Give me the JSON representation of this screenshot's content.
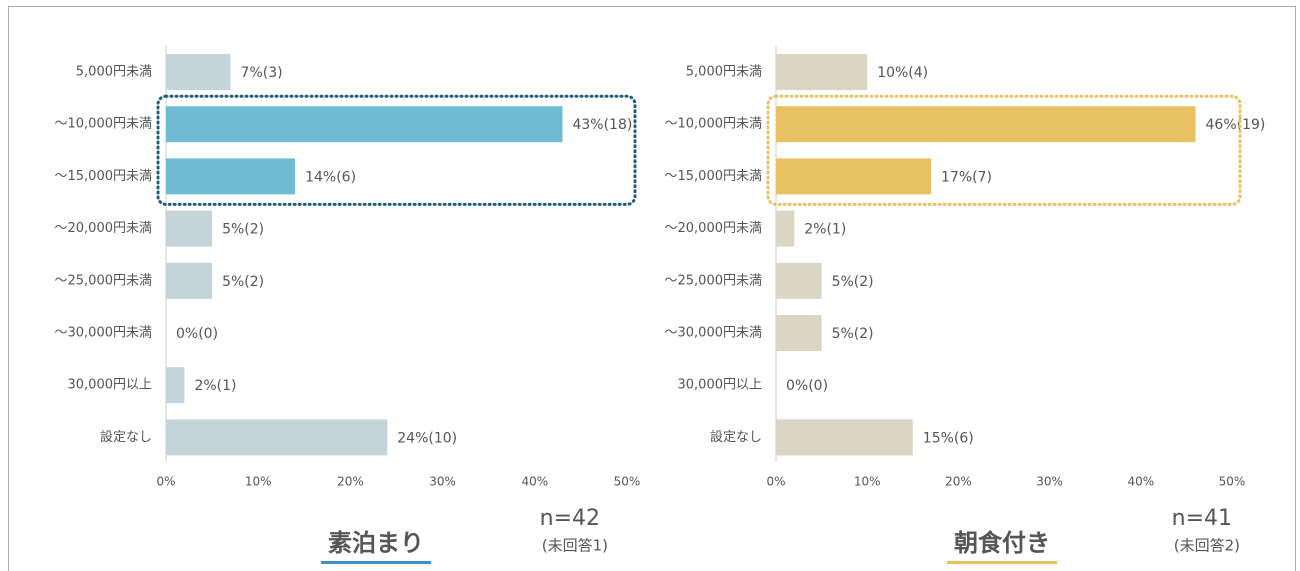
{
  "chart_data": [
    {
      "type": "bar",
      "orientation": "horizontal",
      "title": "素泊まり",
      "n_label": "n=42",
      "note": "(未回答1)",
      "categories": [
        "5,000円未満",
        "～10,000円未満",
        "～15,000円未満",
        "～20,000円未満",
        "～25,000円未満",
        "～30,000円未満",
        "30,000円以上",
        "設定なし"
      ],
      "values": [
        7,
        43,
        14,
        5,
        5,
        0,
        2,
        24
      ],
      "value_labels": [
        "7%(3)",
        "43%(18)",
        "14%(6)",
        "5%(2)",
        "5%(2)",
        "0%(0)",
        "2%(1)",
        "24%(10)"
      ],
      "colors": [
        "#c5d3da",
        "#6fbbd3",
        "#6fbbd3",
        "#c5d3da",
        "#c5d3da",
        "#c5d3da",
        "#c5d3da",
        "#c5d3da"
      ],
      "box_color": "#1f5f7a",
      "accent_color": "#3f8fc4",
      "xlim": [
        0,
        50
      ],
      "xticks": [
        {
          "value": 0,
          "label": "0%"
        },
        {
          "value": 10,
          "label": "10%"
        },
        {
          "value": 20,
          "label": "20%"
        },
        {
          "value": 30,
          "label": "30%"
        },
        {
          "value": 40,
          "label": "40%"
        },
        {
          "value": 50,
          "label": "50%"
        }
      ]
    },
    {
      "type": "bar",
      "orientation": "horizontal",
      "title": "朝食付き",
      "n_label": "n=41",
      "note": "(未回答2)",
      "categories": [
        "5,000円未満",
        "～10,000円未満",
        "～15,000円未満",
        "～20,000円未満",
        "～25,000円未満",
        "～30,000円未満",
        "30,000円以上",
        "設定なし"
      ],
      "values": [
        10,
        46,
        17,
        2,
        5,
        5,
        0,
        15
      ],
      "value_labels": [
        "10%(4)",
        "46%(19)",
        "17%(7)",
        "2%(1)",
        "5%(2)",
        "5%(2)",
        "0%(0)",
        "15%(6)"
      ],
      "colors": [
        "#ddd5c3",
        "#e8c262",
        "#e8c262",
        "#ddd5c3",
        "#ddd5c3",
        "#ddd5c3",
        "#ddd5c3",
        "#ddd5c3"
      ],
      "box_color": "#e8c262",
      "accent_color": "#e8c262",
      "xlim": [
        0,
        50
      ],
      "xticks": [
        {
          "value": 0,
          "label": "0%"
        },
        {
          "value": 10,
          "label": "10%"
        },
        {
          "value": 20,
          "label": "20%"
        },
        {
          "value": 30,
          "label": "30%"
        },
        {
          "value": 40,
          "label": "40%"
        },
        {
          "value": 50,
          "label": "50%"
        }
      ]
    }
  ]
}
